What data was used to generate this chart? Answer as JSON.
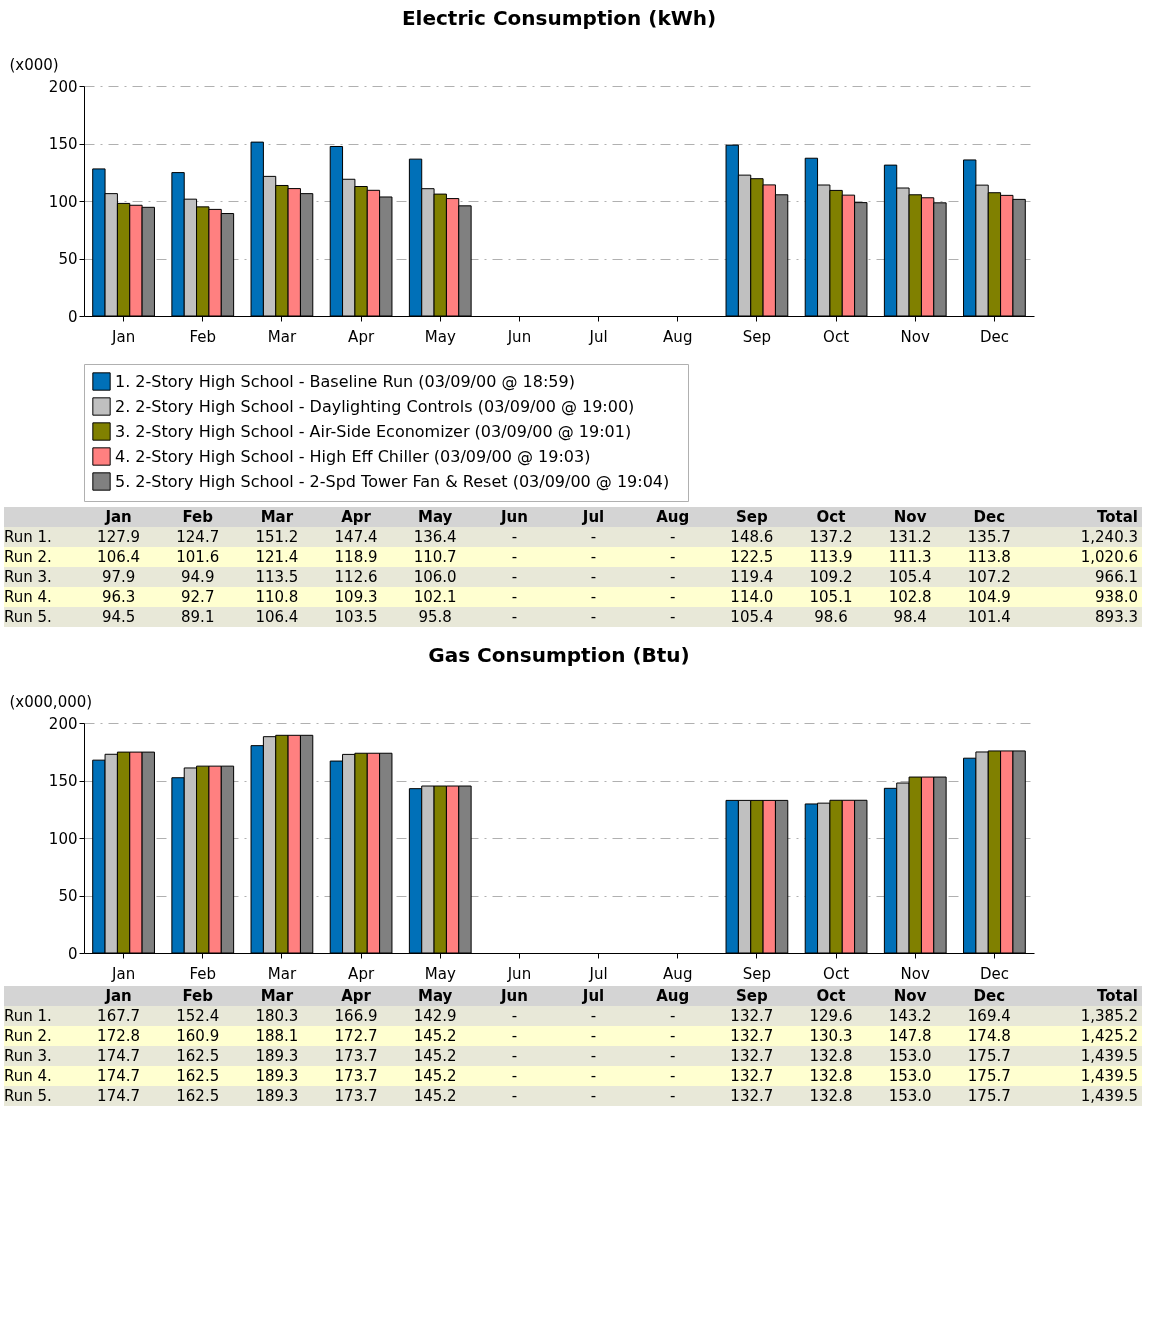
{
  "chart_data": [
    {
      "type": "bar",
      "title": "Electric Consumption (kWh)",
      "ylabel": "(x000)",
      "categories": [
        "Jan",
        "Feb",
        "Mar",
        "Apr",
        "May",
        "Jun",
        "Jul",
        "Aug",
        "Sep",
        "Oct",
        "Nov",
        "Dec"
      ],
      "ylim": [
        0,
        200
      ],
      "yticks": [
        0,
        50,
        100,
        150,
        200
      ],
      "grid": "y",
      "legend": "bottom",
      "data_labels": true,
      "annotations": [
        "Run 1.",
        "Run 2.",
        "Run 3.",
        "Run 4.",
        "Run 5.",
        "Total",
        "1,240.3",
        "1,020.6",
        "966.1",
        "938.0",
        "893.3"
      ],
      "series": [
        {
          "name": "1.  2-Story High School - Baseline Run  (03/09/00 @ 18:59)",
          "color": "#0070b8",
          "values": [
            127.9,
            124.7,
            151.2,
            147.4,
            136.4,
            null,
            null,
            null,
            148.6,
            137.2,
            131.2,
            135.7
          ],
          "value_labels": [
            "127.9",
            "124.7",
            "151.2",
            "147.4",
            "136.4",
            "-",
            "-",
            "-",
            "148.6",
            "137.2",
            "131.2",
            "135.7"
          ]
        },
        {
          "name": "2.  2-Story High School - Daylighting Controls  (03/09/00 @ 19:00)",
          "color": "#c0c0c0",
          "values": [
            106.4,
            101.6,
            121.4,
            118.9,
            110.7,
            null,
            null,
            null,
            122.5,
            113.9,
            111.3,
            113.8
          ],
          "value_labels": [
            "106.4",
            "101.6",
            "121.4",
            "118.9",
            "110.7",
            "-",
            "-",
            "-",
            "122.5",
            "113.9",
            "111.3",
            "113.8"
          ]
        },
        {
          "name": "3.  2-Story High School - Air-Side Economizer  (03/09/00 @ 19:01)",
          "color": "#808000",
          "values": [
            97.9,
            94.9,
            113.5,
            112.6,
            106.0,
            null,
            null,
            null,
            119.4,
            109.2,
            105.4,
            107.2
          ],
          "value_labels": [
            "97.9",
            "94.9",
            "113.5",
            "112.6",
            "106.0",
            "-",
            "-",
            "-",
            "119.4",
            "109.2",
            "105.4",
            "107.2"
          ]
        },
        {
          "name": "4.  2-Story High School - High Eff Chiller  (03/09/00 @ 19:03)",
          "color": "#ff8080",
          "values": [
            96.3,
            92.7,
            110.8,
            109.3,
            102.1,
            null,
            null,
            null,
            114.0,
            105.1,
            102.8,
            104.9
          ],
          "value_labels": [
            "96.3",
            "92.7",
            "110.8",
            "109.3",
            "102.1",
            "-",
            "-",
            "-",
            "114.0",
            "105.1",
            "102.8",
            "104.9"
          ]
        },
        {
          "name": "5.  2-Story High School - 2-Spd Tower Fan & Reset  (03/09/00 @ 19:04)",
          "color": "#808080",
          "values": [
            94.5,
            89.1,
            106.4,
            103.5,
            95.8,
            null,
            null,
            null,
            105.4,
            98.6,
            98.4,
            101.4
          ],
          "value_labels": [
            "94.5",
            "89.1",
            "106.4",
            "103.5",
            "95.8",
            "-",
            "-",
            "-",
            "105.4",
            "98.6",
            "98.4",
            "101.4"
          ]
        }
      ]
    },
    {
      "type": "bar",
      "title": "Gas Consumption (Btu)",
      "ylabel": "(x000,000)",
      "categories": [
        "Jan",
        "Feb",
        "Mar",
        "Apr",
        "May",
        "Jun",
        "Jul",
        "Aug",
        "Sep",
        "Oct",
        "Nov",
        "Dec"
      ],
      "ylim": [
        0,
        200
      ],
      "yticks": [
        0,
        50,
        100,
        150,
        200
      ],
      "grid": "y",
      "data_labels": true,
      "annotations": [
        "Run 1.",
        "Run 2.",
        "Run 3.",
        "Run 4.",
        "Run 5.",
        "Total",
        "1,385.2",
        "1,425.2",
        "1,439.5",
        "1,439.5",
        "1,439.5"
      ],
      "series": [
        {
          "color": "#0070b8",
          "values": [
            167.7,
            152.4,
            180.3,
            166.9,
            142.9,
            null,
            null,
            null,
            132.7,
            129.6,
            143.2,
            169.4
          ],
          "value_labels": [
            "167.7",
            "152.4",
            "180.3",
            "166.9",
            "142.9",
            "-",
            "-",
            "-",
            "132.7",
            "129.6",
            "143.2",
            "169.4"
          ]
        },
        {
          "color": "#c0c0c0",
          "values": [
            172.8,
            160.9,
            188.1,
            172.7,
            145.2,
            null,
            null,
            null,
            132.7,
            130.3,
            147.8,
            174.8
          ],
          "value_labels": [
            "172.8",
            "160.9",
            "188.1",
            "172.7",
            "145.2",
            "-",
            "-",
            "-",
            "132.7",
            "130.3",
            "147.8",
            "174.8"
          ]
        },
        {
          "color": "#808000",
          "values": [
            174.7,
            162.5,
            189.3,
            173.7,
            145.2,
            null,
            null,
            null,
            132.7,
            132.8,
            153.0,
            175.7
          ],
          "value_labels": [
            "174.7",
            "162.5",
            "189.3",
            "173.7",
            "145.2",
            "-",
            "-",
            "-",
            "132.7",
            "132.8",
            "153.0",
            "175.7"
          ]
        },
        {
          "color": "#ff8080",
          "values": [
            174.7,
            162.5,
            189.3,
            173.7,
            145.2,
            null,
            null,
            null,
            132.7,
            132.8,
            153.0,
            175.7
          ],
          "value_labels": [
            "174.7",
            "162.5",
            "189.3",
            "173.7",
            "145.2",
            "-",
            "-",
            "-",
            "132.7",
            "132.8",
            "153.0",
            "175.7"
          ]
        },
        {
          "color": "#808080",
          "values": [
            174.7,
            162.5,
            189.3,
            173.7,
            145.2,
            null,
            null,
            null,
            132.7,
            132.8,
            153.0,
            175.7
          ],
          "value_labels": [
            "174.7",
            "162.5",
            "189.3",
            "173.7",
            "145.2",
            "-",
            "-",
            "-",
            "132.7",
            "132.8",
            "153.0",
            "175.7"
          ]
        }
      ]
    }
  ]
}
